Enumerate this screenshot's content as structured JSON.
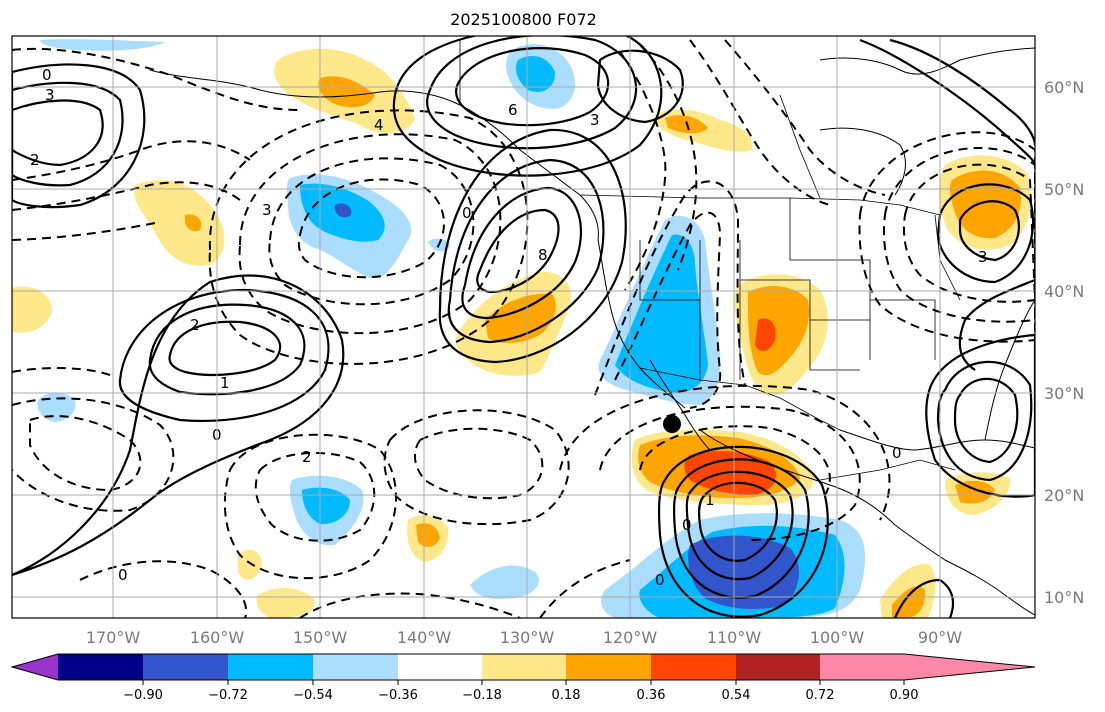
{
  "title": "2025100800 F072",
  "lat_labels": [
    "60°N",
    "50°N",
    "40°N",
    "30°N",
    "20°N",
    "10°N"
  ],
  "lon_labels": [
    "170°W",
    "160°W",
    "150°W",
    "140°W",
    "130°W",
    "120°W",
    "110°W",
    "100°W",
    "90°W"
  ],
  "colorbar": {
    "colors": [
      "#9933cc",
      "#000088",
      "#3355cc",
      "#00bbff",
      "#aaddff",
      "#ffffff",
      "#ffe88a",
      "#ffa500",
      "#ff4500",
      "#b22222",
      "#ff88aa"
    ],
    "tick_labels": [
      "−0.90",
      "−0.72",
      "−0.54",
      "−0.36",
      "−0.18",
      "0.18",
      "0.36",
      "0.54",
      "0.72",
      "0.90"
    ]
  },
  "contour_labels": [
    "0",
    "3",
    "2",
    "6",
    "4",
    "3",
    "3",
    "0",
    "2",
    "1",
    "0",
    "0",
    "2",
    "8",
    "0",
    "0",
    "1",
    "0",
    "3"
  ],
  "colors": {
    "frame": "#000000",
    "grid": "#aaaaaa",
    "contour": "#000000"
  }
}
